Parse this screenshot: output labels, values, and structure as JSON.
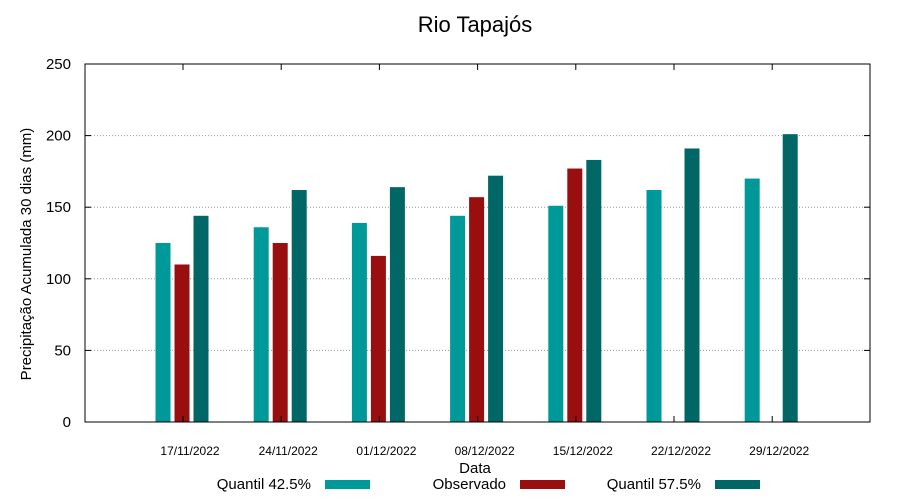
{
  "chart_data": {
    "type": "bar",
    "title": "Rio Tapajós",
    "xlabel": "Data",
    "ylabel": "Precipitação Acumulada 30 dias (mm)",
    "ylim": [
      0,
      250
    ],
    "yticks": [
      0,
      50,
      100,
      150,
      200,
      250
    ],
    "grid": "horizontal dotted",
    "categories": [
      "17/11/2022",
      "24/11/2022",
      "01/12/2022",
      "08/12/2022",
      "15/12/2022",
      "22/12/2022",
      "29/12/2022"
    ],
    "series": [
      {
        "name": "Quantil 42.5%",
        "color": "#009999",
        "values": [
          125,
          136,
          139,
          144,
          151,
          162,
          170
        ]
      },
      {
        "name": "Observado",
        "color": "#990f0f",
        "values": [
          110,
          125,
          116,
          157,
          177,
          null,
          null
        ]
      },
      {
        "name": "Quantil 57.5%",
        "color": "#006666",
        "values": [
          144,
          162,
          164,
          172,
          183,
          191,
          201
        ]
      }
    ],
    "legend_position": "bottom"
  }
}
